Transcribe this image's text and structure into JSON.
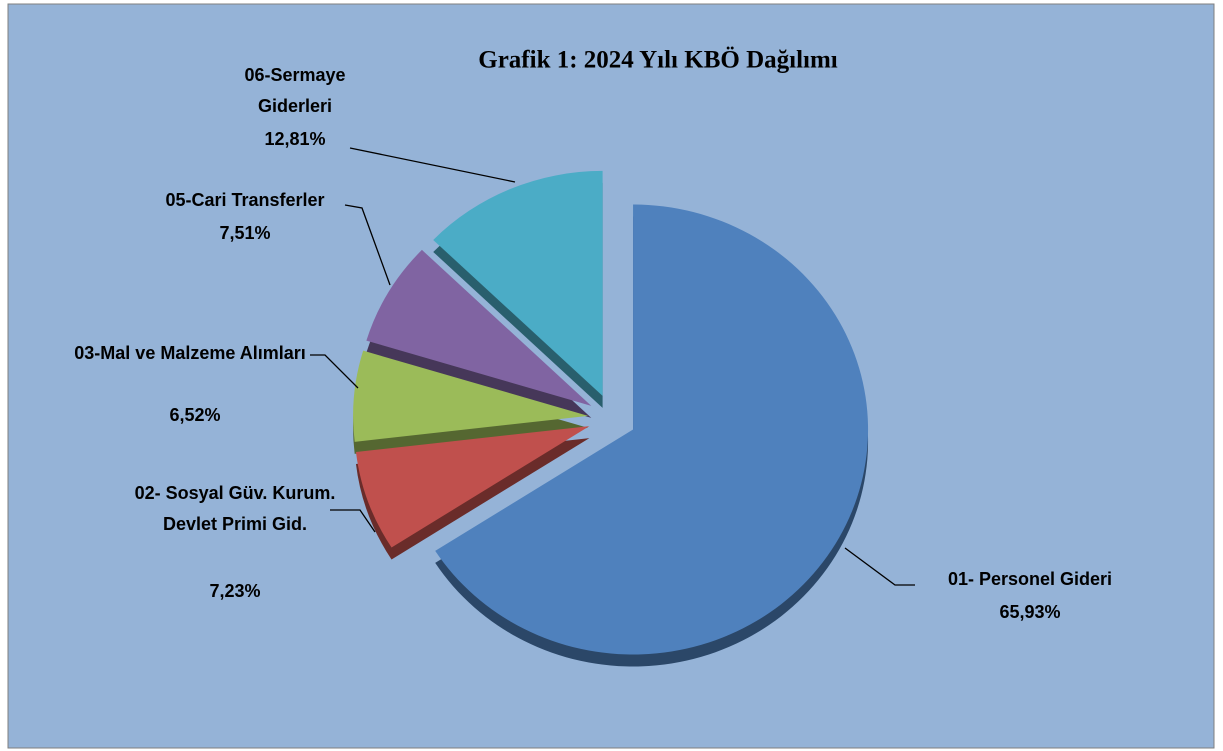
{
  "chart_data": {
    "type": "pie",
    "title": "Grafik 1: 2024 Yılı KBÖ Dağılımı",
    "categories": [
      "01- Personel Gideri",
      "02- Sosyal Güv. Kurum. Devlet Primi Gid.",
      "03-Mal ve Malzeme Alımları",
      "05-Cari Transferler",
      "06-Sermaye Giderleri"
    ],
    "values": [
      65.93,
      7.23,
      6.52,
      7.51,
      12.81
    ],
    "value_labels": [
      "65,93%",
      "7,23%",
      "6,52%",
      "7,51%",
      "12,81%"
    ],
    "colors": [
      "#4f81bd",
      "#c0504d",
      "#9bbb59",
      "#8064a2",
      "#4bacc6"
    ]
  }
}
